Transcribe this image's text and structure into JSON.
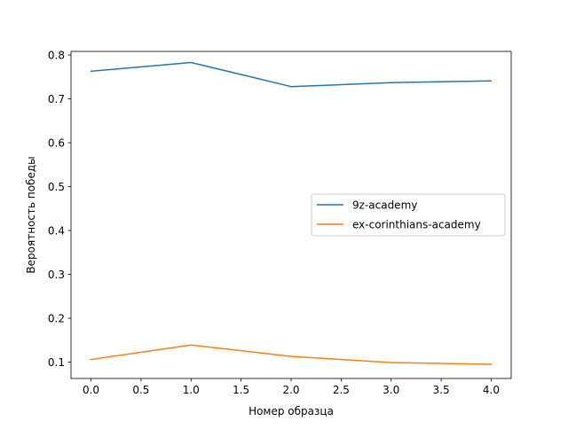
{
  "chart_data": {
    "type": "line",
    "title": "",
    "xlabel": "Номер образца",
    "ylabel": "Вероятность победы",
    "x": [
      0,
      1,
      2,
      3,
      4
    ],
    "xlim": [
      -0.2,
      4.2
    ],
    "ylim": [
      0.0627,
      0.8082
    ],
    "xticks": [
      0.0,
      0.5,
      1.0,
      1.5,
      2.0,
      2.5,
      3.0,
      3.5,
      4.0
    ],
    "xtick_labels": [
      "0.0",
      "0.5",
      "1.0",
      "1.5",
      "2.0",
      "2.5",
      "3.0",
      "3.5",
      "4.0"
    ],
    "yticks": [
      0.1,
      0.2,
      0.3,
      0.4,
      0.5,
      0.6,
      0.7,
      0.8
    ],
    "ytick_labels": [
      "0.1",
      "0.2",
      "0.3",
      "0.4",
      "0.5",
      "0.6",
      "0.7",
      "0.8"
    ],
    "grid": false,
    "legend_position": "center-right",
    "series": [
      {
        "name": "9z-academy",
        "color": "#1f77b4",
        "values": [
          0.763,
          0.783,
          0.728,
          0.737,
          0.741
        ]
      },
      {
        "name": "ex-corinthians-academy",
        "color": "#ff7f0e",
        "values": [
          0.106,
          0.139,
          0.113,
          0.099,
          0.095
        ]
      }
    ]
  }
}
